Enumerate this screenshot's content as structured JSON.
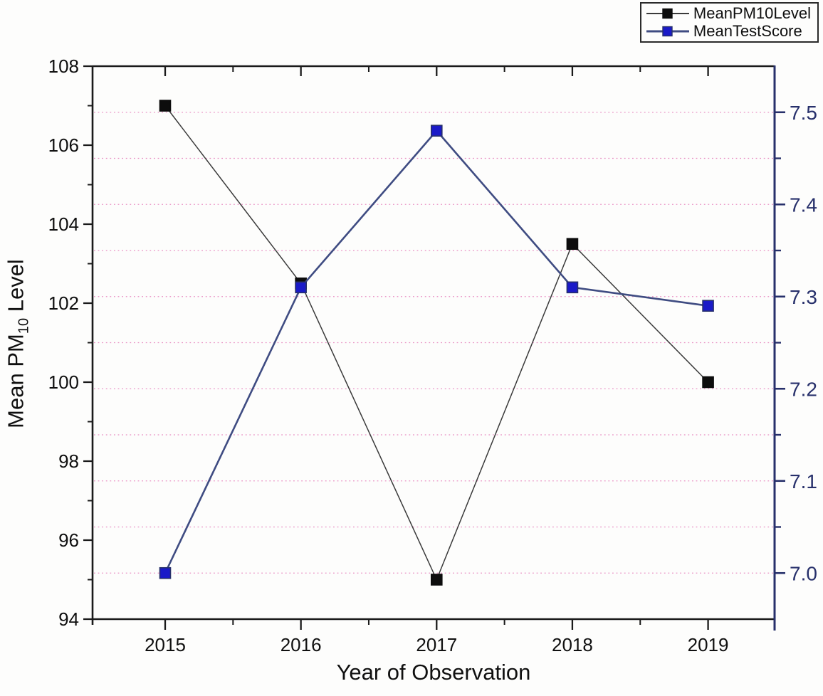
{
  "chart_data": {
    "type": "line",
    "title": "",
    "xlabel": "Year of Observation",
    "ylabel_left": {
      "prefix": "Mean PM",
      "sub": "10",
      "suffix": " Level"
    },
    "categories": [
      2015,
      2016,
      2017,
      2018,
      2019
    ],
    "x_tick_labels": [
      "2015",
      "2016",
      "2017",
      "2018",
      "2019"
    ],
    "x_minor_ticks": [
      2015.5,
      2016.5,
      2017.5,
      2018.5
    ],
    "xlim": [
      2014.465,
      2019.49
    ],
    "series": [
      {
        "name": "MeanPM10Level",
        "axis": "left",
        "values": [
          107,
          102.5,
          95,
          103.5,
          100
        ],
        "line_color": "#3a3a3a",
        "line_width": 1.5,
        "marker": "square",
        "marker_fill": "#0d0d0d",
        "marker_edge": "#0d0d0d"
      },
      {
        "name": "MeanTestScore",
        "axis": "right",
        "values": [
          7.0,
          7.31,
          7.48,
          7.31,
          7.29
        ],
        "line_color": "#3f4c82",
        "line_width": 2.6,
        "marker": "square",
        "marker_fill": "#1a1ac8",
        "marker_edge": "#27306b"
      }
    ],
    "left_axis": {
      "min": 94,
      "max": 108,
      "label_ticks": [
        94,
        96,
        98,
        100,
        102,
        104,
        106,
        108
      ],
      "tick_labels": [
        "94",
        "96",
        "98",
        "100",
        "102",
        "104",
        "106",
        "108"
      ],
      "minor_ticks": [
        95,
        97,
        99,
        101,
        103,
        105,
        107
      ],
      "color": "#1a1a1a"
    },
    "right_axis": {
      "min": 6.95,
      "max": 7.55,
      "label_ticks": [
        7.0,
        7.1,
        7.2,
        7.3,
        7.4,
        7.5
      ],
      "tick_labels": [
        "7.0",
        "7.1",
        "7.2",
        "7.3",
        "7.4",
        "7.5"
      ],
      "minor_ticks": [
        7.05,
        7.15,
        7.25,
        7.35,
        7.45
      ],
      "color": "#27306b"
    },
    "gridlines": {
      "axis": "right",
      "values": [
        7.0,
        7.05,
        7.1,
        7.15,
        7.2,
        7.25,
        7.3,
        7.35,
        7.4,
        7.45,
        7.5
      ],
      "color": "#e583bd",
      "style": "dotted"
    },
    "legend_position": "top-right",
    "grid": true
  }
}
